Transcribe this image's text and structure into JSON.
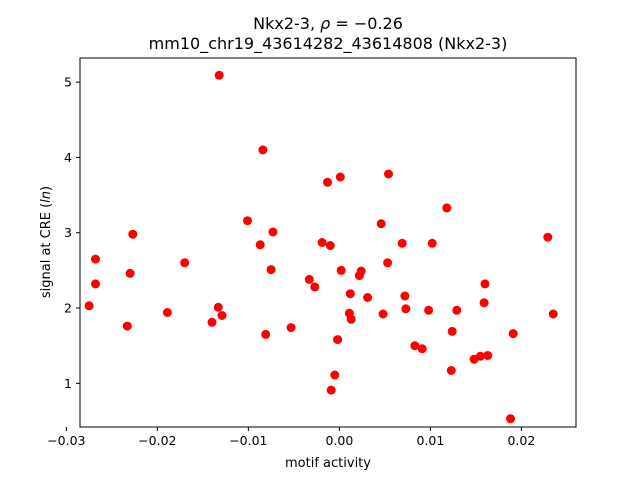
{
  "chart_data": {
    "type": "scatter",
    "title_line1": "Nkx2-3, ",
    "title_rho": "ρ",
    "title_line1_rest": " = −0.26",
    "title_line2": "mm10_chr19_43614282_43614808 (Nkx2-3)",
    "xlabel": "motif activity",
    "ylabel_prefix": "signal at CRE (",
    "ylabel_italic": "ln",
    "ylabel_suffix": ")",
    "xlim": [
      -0.0285,
      0.026
    ],
    "ylim": [
      0.42,
      5.32
    ],
    "x_ticks": [
      -0.03,
      -0.02,
      -0.01,
      0.0,
      0.01,
      0.02
    ],
    "x_tick_labels": [
      "−0.03",
      "−0.02",
      "−0.01",
      "0.00",
      "0.01",
      "0.02"
    ],
    "y_ticks": [
      1,
      2,
      3,
      4,
      5
    ],
    "y_tick_labels": [
      "1",
      "2",
      "3",
      "4",
      "5"
    ],
    "grid": false,
    "marker_color": "#ff0000",
    "points": [
      {
        "x": -0.0275,
        "y": 2.03
      },
      {
        "x": -0.0268,
        "y": 2.65
      },
      {
        "x": -0.0268,
        "y": 2.32
      },
      {
        "x": -0.0233,
        "y": 1.76
      },
      {
        "x": -0.023,
        "y": 2.46
      },
      {
        "x": -0.0227,
        "y": 2.98
      },
      {
        "x": -0.0189,
        "y": 1.94
      },
      {
        "x": -0.017,
        "y": 2.6
      },
      {
        "x": -0.014,
        "y": 1.81
      },
      {
        "x": -0.0133,
        "y": 2.01
      },
      {
        "x": -0.0132,
        "y": 5.09
      },
      {
        "x": -0.0129,
        "y": 1.9
      },
      {
        "x": -0.0101,
        "y": 3.16
      },
      {
        "x": -0.0087,
        "y": 2.84
      },
      {
        "x": -0.0084,
        "y": 4.1
      },
      {
        "x": -0.0081,
        "y": 1.65
      },
      {
        "x": -0.0075,
        "y": 2.51
      },
      {
        "x": -0.0073,
        "y": 3.01
      },
      {
        "x": -0.0053,
        "y": 1.74
      },
      {
        "x": -0.0033,
        "y": 2.38
      },
      {
        "x": -0.0027,
        "y": 2.28
      },
      {
        "x": -0.0019,
        "y": 2.87
      },
      {
        "x": -0.0013,
        "y": 3.67
      },
      {
        "x": -0.001,
        "y": 2.83
      },
      {
        "x": -0.0009,
        "y": 0.91
      },
      {
        "x": -0.0005,
        "y": 1.11
      },
      {
        "x": -0.0002,
        "y": 1.58
      },
      {
        "x": 0.0001,
        "y": 3.74
      },
      {
        "x": 0.0002,
        "y": 2.5
      },
      {
        "x": 0.0011,
        "y": 1.93
      },
      {
        "x": 0.0012,
        "y": 2.19
      },
      {
        "x": 0.0013,
        "y": 1.85
      },
      {
        "x": 0.0022,
        "y": 2.43
      },
      {
        "x": 0.0024,
        "y": 2.49
      },
      {
        "x": 0.0031,
        "y": 2.14
      },
      {
        "x": 0.0046,
        "y": 3.12
      },
      {
        "x": 0.0048,
        "y": 1.92
      },
      {
        "x": 0.0053,
        "y": 2.6
      },
      {
        "x": 0.0054,
        "y": 3.78
      },
      {
        "x": 0.0069,
        "y": 2.86
      },
      {
        "x": 0.0072,
        "y": 2.16
      },
      {
        "x": 0.0073,
        "y": 1.99
      },
      {
        "x": 0.0083,
        "y": 1.5
      },
      {
        "x": 0.0091,
        "y": 1.46
      },
      {
        "x": 0.0098,
        "y": 1.97
      },
      {
        "x": 0.0102,
        "y": 2.86
      },
      {
        "x": 0.0118,
        "y": 3.33
      },
      {
        "x": 0.0123,
        "y": 1.17
      },
      {
        "x": 0.0124,
        "y": 1.69
      },
      {
        "x": 0.0129,
        "y": 1.97
      },
      {
        "x": 0.0148,
        "y": 1.32
      },
      {
        "x": 0.0155,
        "y": 1.36
      },
      {
        "x": 0.0159,
        "y": 2.07
      },
      {
        "x": 0.016,
        "y": 2.32
      },
      {
        "x": 0.0163,
        "y": 1.37
      },
      {
        "x": 0.0188,
        "y": 0.53
      },
      {
        "x": 0.0191,
        "y": 1.66
      },
      {
        "x": 0.0229,
        "y": 2.94
      },
      {
        "x": 0.0235,
        "y": 1.92
      }
    ]
  }
}
